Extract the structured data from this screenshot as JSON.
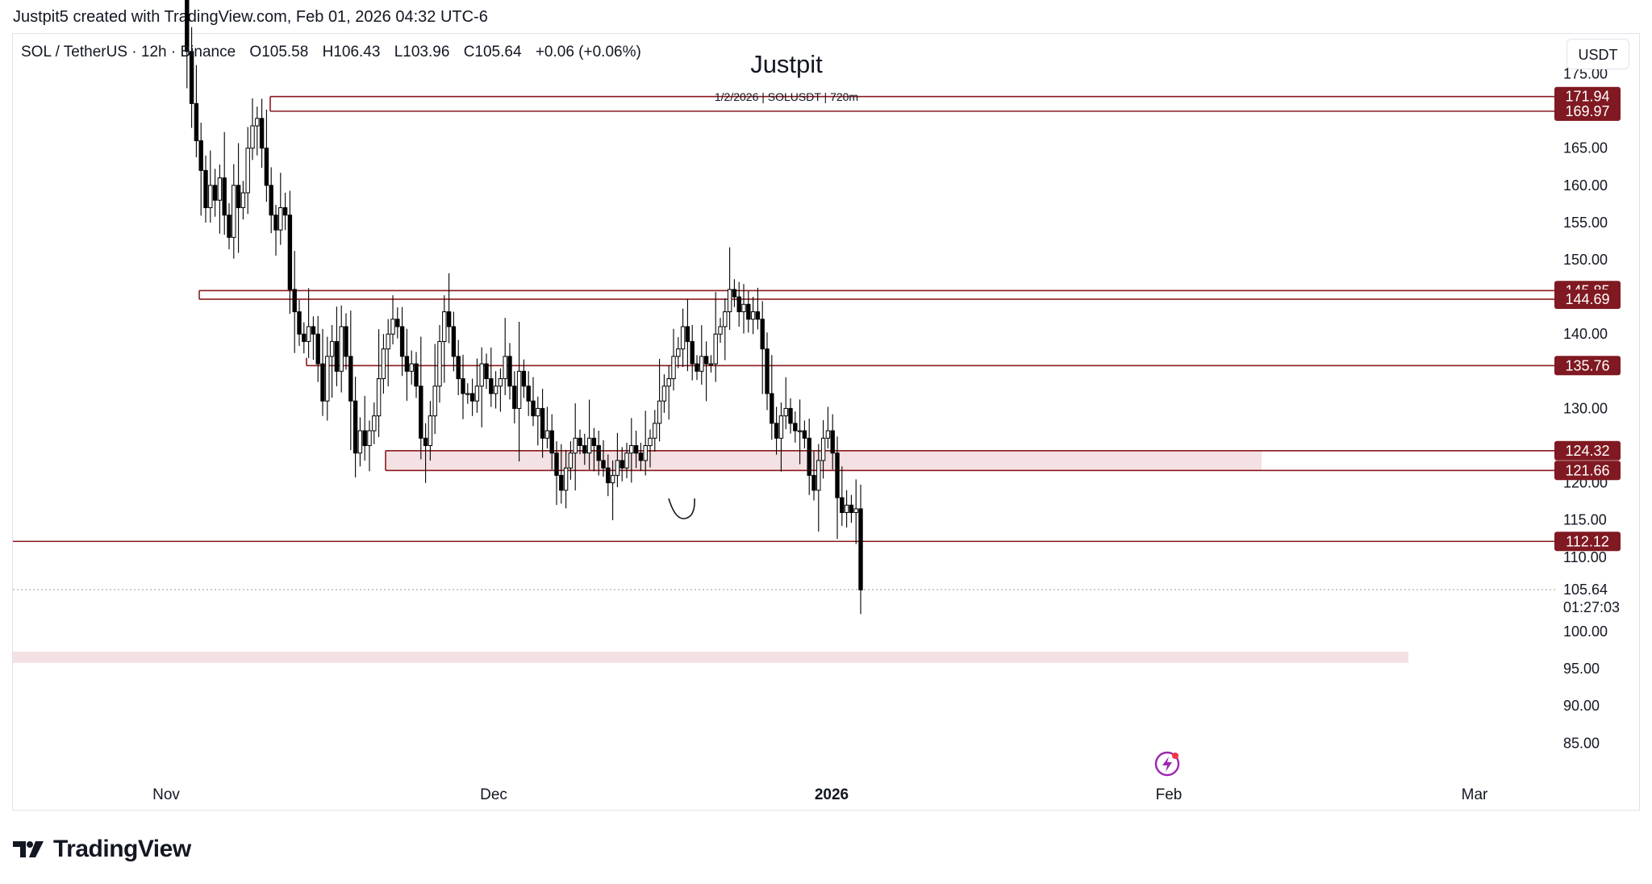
{
  "header": {
    "caption": "Justpit5 created with TradingView.com, Feb 01, 2026 04:32 UTC-6"
  },
  "legend": {
    "symbol": "SOL / TetherUS · 12h · Binance",
    "open": "O105.58",
    "high": "H106.43",
    "low": "L103.96",
    "close": "C105.64",
    "change": "+0.06 (+0.06%)"
  },
  "chart_title": "Justpit",
  "chart_subtitle": "1/2/2026 | SOLUSDT | 720m",
  "currency_button": "USDT",
  "footer": {
    "brand": "TradingView"
  },
  "icons": {
    "flash": "flash-icon",
    "logo": "tradingview-logo-icon"
  },
  "colors": {
    "level_line": "#8b1a1f",
    "label_bg": "#801921",
    "zone_fill": "#f4e1e3",
    "candle": "#000000"
  },
  "chart_data": {
    "type": "candlestick",
    "title": "Justpit",
    "subtitle": "1/2/2026 | SOLUSDT | 720m",
    "interval": "12h",
    "ylim": [
      81,
      183
    ],
    "y_ticks": [
      "85.00",
      "90.00",
      "95.00",
      "100.00",
      "105.64",
      "110.00",
      "115.00",
      "120.00",
      "130.00",
      "140.00",
      "150.00",
      "155.00",
      "160.00",
      "165.00",
      "175.00"
    ],
    "x_ticks": [
      "Nov",
      "Dec",
      "2026",
      "Feb",
      "Mar"
    ],
    "levels": [
      171.94,
      169.97,
      145.85,
      144.69,
      135.76,
      124.32,
      121.66,
      112.12
    ],
    "level_labels": [
      "171.94",
      "169.97",
      "145.85",
      "144.69",
      "135.76",
      "124.32",
      "121.66",
      "112.12"
    ],
    "zones": [
      {
        "low": 121.66,
        "high": 124.32
      },
      {
        "low": 95.8,
        "high": 97.3
      }
    ],
    "last_price": "105.64",
    "countdown": "01:27:03",
    "closes": [
      195.0,
      178.0,
      171.0,
      166.0,
      162.0,
      157.0,
      160.0,
      158.0,
      161.0,
      156.0,
      153.0,
      160.0,
      157.0,
      159.0,
      165.0,
      168.0,
      169.0,
      165.0,
      160.0,
      156.0,
      154.0,
      157.0,
      156.0,
      146.0,
      143.0,
      140.0,
      139.0,
      141.0,
      140.0,
      136.0,
      131.0,
      137.0,
      139.0,
      135.0,
      141.0,
      137.0,
      131.0,
      124.0,
      127.0,
      125.0,
      127.0,
      129.0,
      134.0,
      138.0,
      140.0,
      142.0,
      141.0,
      137.0,
      135.0,
      136.0,
      133.0,
      126.0,
      125.0,
      129.0,
      133.0,
      139.0,
      143.0,
      141.0,
      137.0,
      134.0,
      132.0,
      132.0,
      131.0,
      133.0,
      136.0,
      134.0,
      132.0,
      133.0,
      134.0,
      137.0,
      133.0,
      130.0,
      135.0,
      133.0,
      131.0,
      129.0,
      130.0,
      126.0,
      127.0,
      124.0,
      121.0,
      119.0,
      122.0,
      124.0,
      126.0,
      125.0,
      124.0,
      126.0,
      125.0,
      123.0,
      122.0,
      120.0,
      121.0,
      123.0,
      122.0,
      124.0,
      125.0,
      124.0,
      123.0,
      125.0,
      126.0,
      128.0,
      131.0,
      133.0,
      134.0,
      137.0,
      138.0,
      141.0,
      139.0,
      136.0,
      135.0,
      137.0,
      136.0,
      136.0,
      140.0,
      141.0,
      143.0,
      146.0,
      145.0,
      143.0,
      144.0,
      142.0,
      143.0,
      142.0,
      138.0,
      132.0,
      128.0,
      126.0,
      129.0,
      130.0,
      128.0,
      127.0,
      127.0,
      126.0,
      121.0,
      119.0,
      123.0,
      126.0,
      127.0,
      124.0,
      118.0,
      116.0,
      117.0,
      116.0,
      116.5,
      105.6
    ],
    "notable_wicks": [
      {
        "index": 146,
        "low": 96.4
      }
    ]
  }
}
